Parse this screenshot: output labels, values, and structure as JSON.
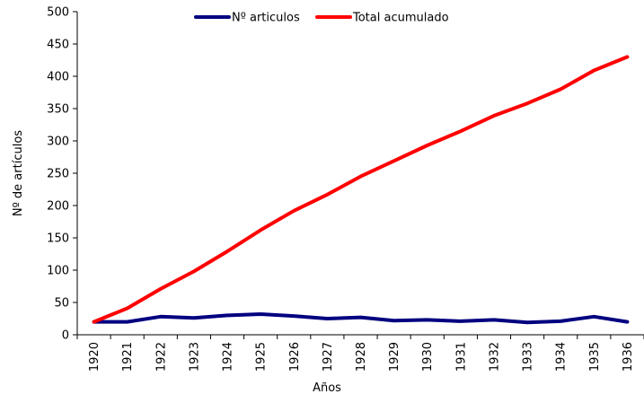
{
  "chart_data": {
    "type": "line",
    "x": [
      "1920",
      "1921",
      "1922",
      "1923",
      "1924",
      "1925",
      "1926",
      "1927",
      "1928",
      "1929",
      "1930",
      "1931",
      "1932",
      "1933",
      "1934",
      "1935",
      "1936"
    ],
    "series": [
      {
        "name": "Nº articulos",
        "color": "#000080",
        "values": [
          20,
          20,
          28,
          26,
          30,
          32,
          29,
          25,
          27,
          22,
          23,
          21,
          23,
          19,
          21,
          28,
          20
        ]
      },
      {
        "name": "Total acumulado",
        "color": "#ff0000",
        "values": [
          20,
          41,
          71,
          98,
          129,
          162,
          192,
          217,
          245,
          269,
          293,
          315,
          339,
          358,
          380,
          409,
          430
        ]
      }
    ],
    "xlabel": "Años",
    "ylabel": "Nº de artículos",
    "ylim": [
      0,
      500
    ],
    "yticks": [
      0,
      50,
      100,
      150,
      200,
      250,
      300,
      350,
      400,
      450,
      500
    ],
    "grid": false,
    "legend_position": "top-center"
  }
}
